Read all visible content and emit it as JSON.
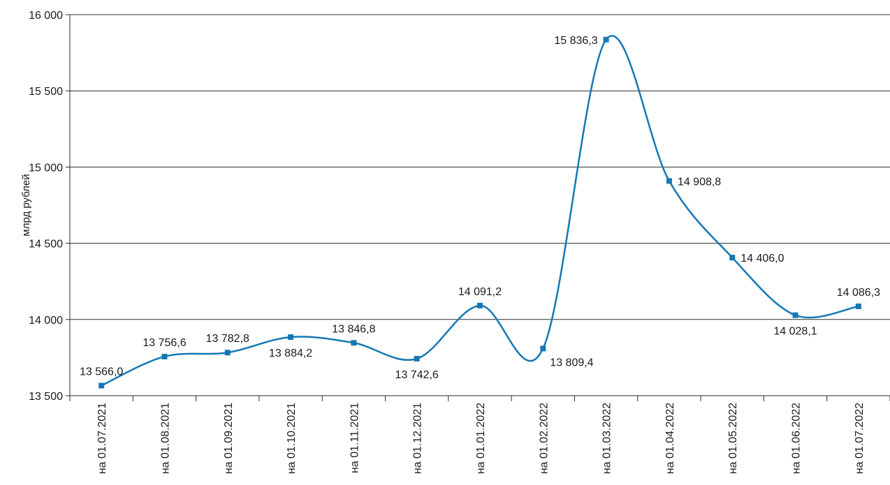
{
  "chart_data": {
    "type": "line",
    "title": "",
    "xlabel": "",
    "ylabel": "млрд рублей",
    "ylim": [
      13500,
      16000
    ],
    "yticks": [
      13500,
      14000,
      14500,
      15000,
      15500,
      16000
    ],
    "ytick_labels": [
      "13 500",
      "14 000",
      "14 500",
      "15 000",
      "15 500",
      "16 000"
    ],
    "grid": "horizontal",
    "smooth": true,
    "line_color": "#1478b4",
    "marker_color": "#1478b4",
    "categories": [
      "на 01.07.2021",
      "на 01.08.2021",
      "на 01.09.2021",
      "на 01.10.2021",
      "на 01.11.2021",
      "на 01.12.2021",
      "на 01.01.2022",
      "на 01.02.2022",
      "на 01.03.2022",
      "на 01.04.2022",
      "на 01.05.2022",
      "на 01.06.2022",
      "на 01.07.2022"
    ],
    "values": [
      13566.0,
      13756.6,
      13782.8,
      13884.2,
      13846.8,
      13742.6,
      14091.2,
      13809.4,
      15836.3,
      14908.8,
      14406.0,
      14028.1,
      14086.3
    ],
    "value_labels": [
      "13 566,0",
      "13 756,6",
      "13 782,8",
      "13 884,2",
      "13 846,8",
      "13 742,6",
      "14 091,2",
      "13 809,4",
      "15 836,3",
      "14 908,8",
      "14 406,0",
      "14 028,1",
      "14 086,3"
    ],
    "label_positions": [
      "above",
      "above",
      "above",
      "below",
      "above",
      "below",
      "above",
      "below-right",
      "left",
      "right",
      "right",
      "below",
      "above"
    ]
  }
}
